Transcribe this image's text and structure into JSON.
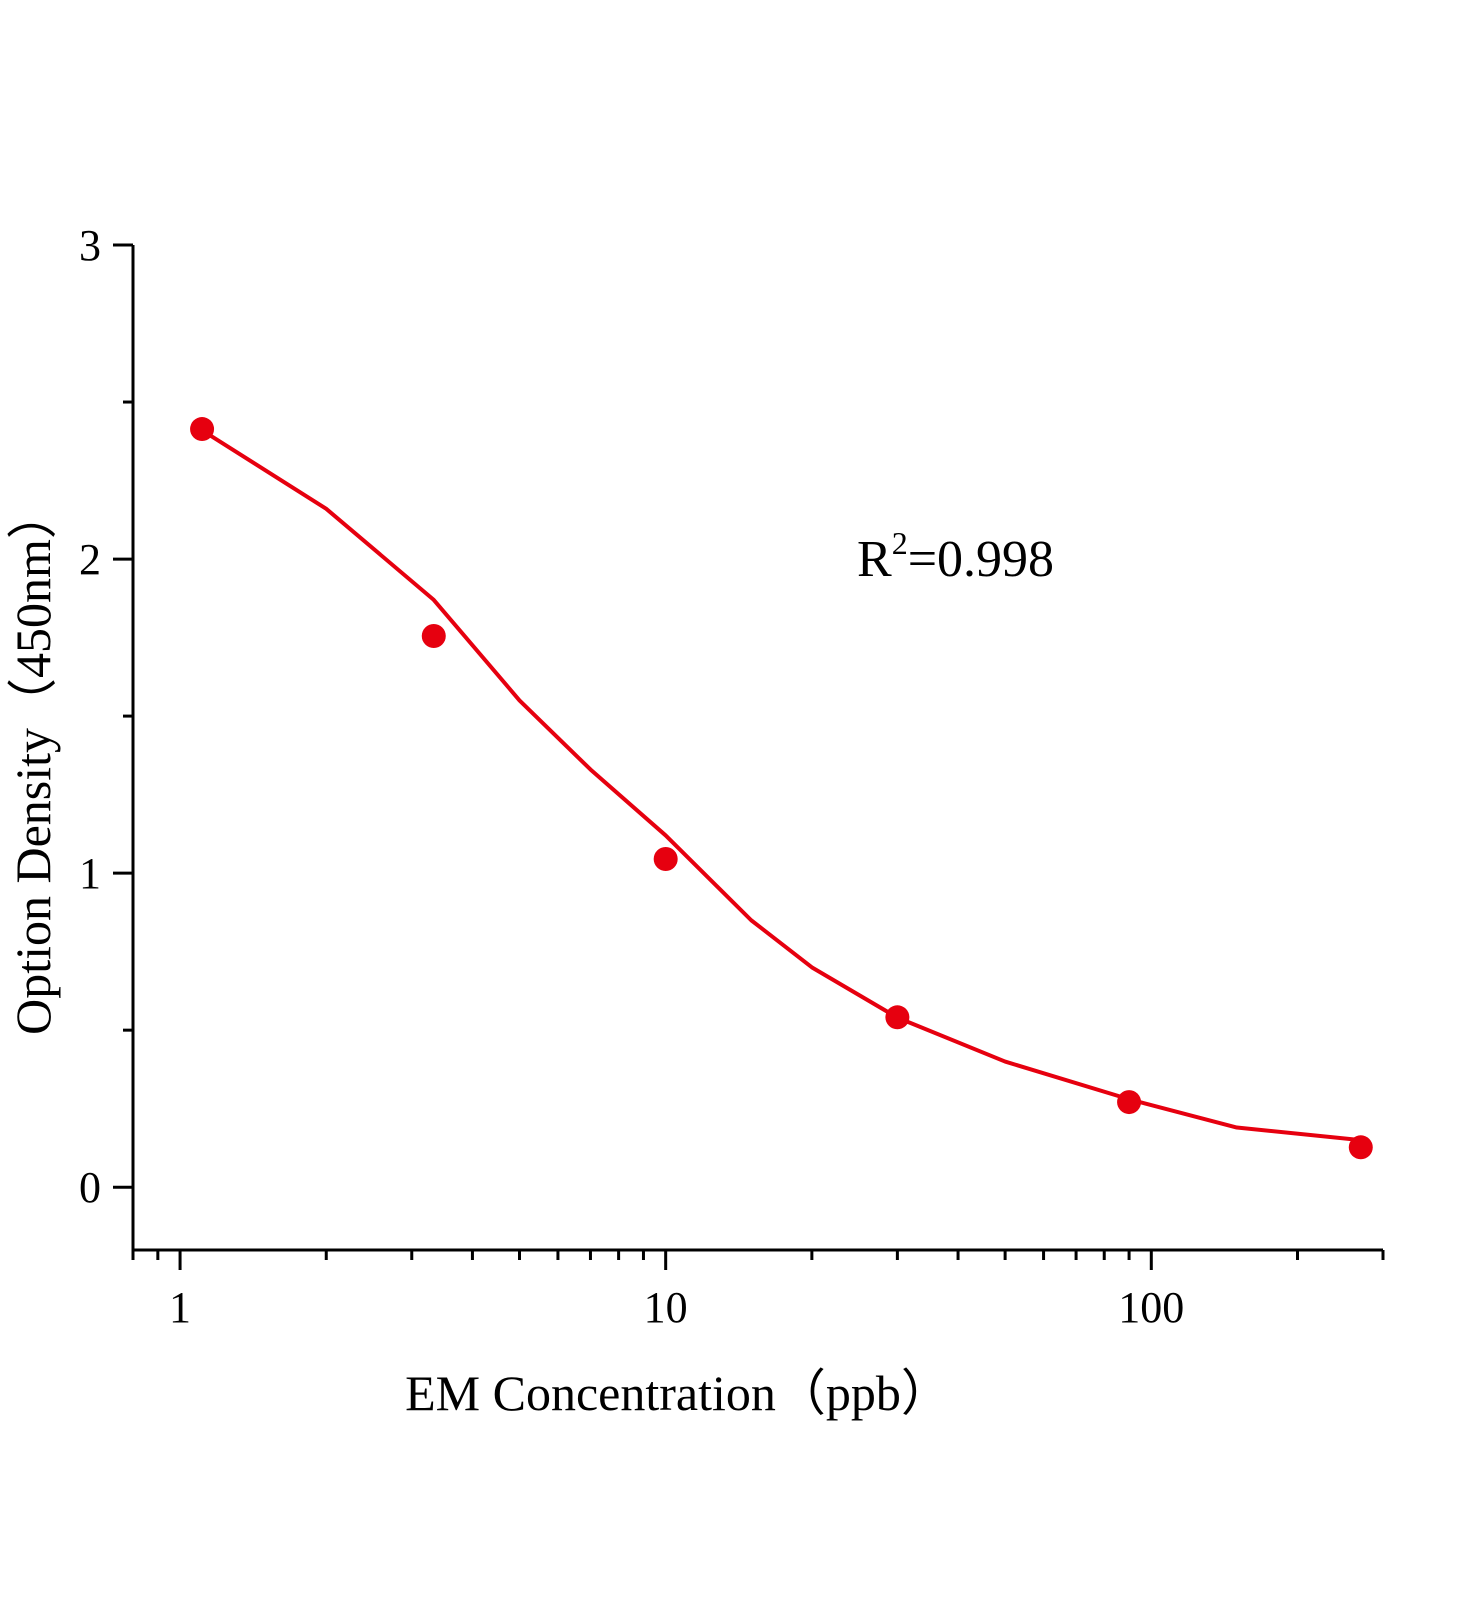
{
  "chart_data": {
    "type": "scatter",
    "x_label": "EM Concentration（ppb）",
    "y_label": "Option Density（450nm）",
    "annotation": {
      "base": "R",
      "superscript": "2",
      "rest": "=0.998"
    },
    "x_log": true,
    "xlim": [
      0.8,
      300
    ],
    "xticks": [
      1,
      10,
      100
    ],
    "xminor_ticks": [
      0.8,
      0.9,
      2,
      3,
      4,
      5,
      6,
      7,
      8,
      9,
      20,
      30,
      40,
      50,
      60,
      70,
      80,
      90,
      200,
      300
    ],
    "ylim": [
      -0.2,
      3
    ],
    "yticks": [
      0,
      1,
      2,
      3
    ],
    "yminor_ticks": [
      0.5,
      1.5,
      2.5
    ],
    "series": [
      {
        "kind": "points",
        "color": "#e6000f",
        "x": [
          1.11,
          3.33,
          10,
          30,
          90,
          270
        ],
        "values": [
          2.414,
          1.755,
          1.045,
          0.541,
          0.271,
          0.127
        ]
      },
      {
        "kind": "fit",
        "color": "#e6000f",
        "x": [
          1.11,
          2,
          3.33,
          5,
          7,
          10,
          15,
          20,
          30,
          50,
          90,
          150,
          270
        ],
        "values": [
          2.41,
          2.16,
          1.87,
          1.55,
          1.33,
          1.12,
          0.85,
          0.7,
          0.54,
          0.4,
          0.28,
          0.19,
          0.15
        ]
      }
    ]
  }
}
